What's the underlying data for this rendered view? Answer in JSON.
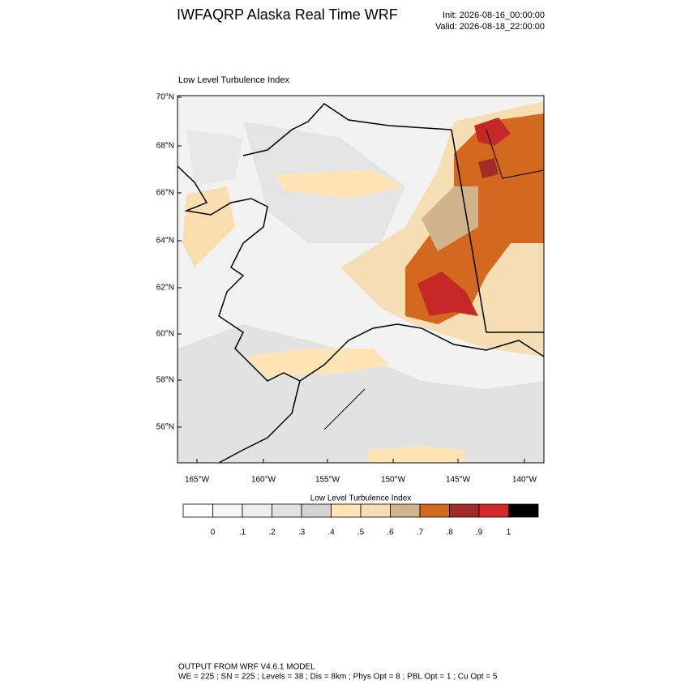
{
  "header": {
    "title": "IWFAQRP Alaska Real Time WRF",
    "init": "Init: 2026-08-16_00:00:00",
    "valid": "Valid: 2026-08-18_22:00:00"
  },
  "map": {
    "title": "Low Level Turbulence Index",
    "lat_labels": [
      "70°N",
      "68°N",
      "66°N",
      "64°N",
      "62°N",
      "60°N",
      "58°N",
      "56°N"
    ],
    "lon_labels": [
      "165°W",
      "160°W",
      "155°W",
      "150°W",
      "145°W",
      "140°W"
    ]
  },
  "colorbar": {
    "title": "Low Level Turbulence Index",
    "colors": [
      "#ffffff",
      "#f7f7f7",
      "#efefef",
      "#e2e2e2",
      "#d4d4d4",
      "#ffe4b5",
      "#f5deb3",
      "#d2b48c",
      "#d2691e",
      "#a52a2a",
      "#d42a2a",
      "#000000"
    ],
    "labels": [
      "0",
      ".1",
      ".2",
      ".3",
      ".4",
      ".5",
      ".6",
      ".7",
      ".8",
      ".9",
      "1"
    ]
  },
  "footer": {
    "line1": "OUTPUT FROM WRF V4.6.1 MODEL",
    "line2": "WE = 225 ; SN = 225 ; Levels = 38 ; Dis = 8km ; Phys Opt = 8 ; PBL Opt = 1 ; Cu Opt = 5"
  }
}
